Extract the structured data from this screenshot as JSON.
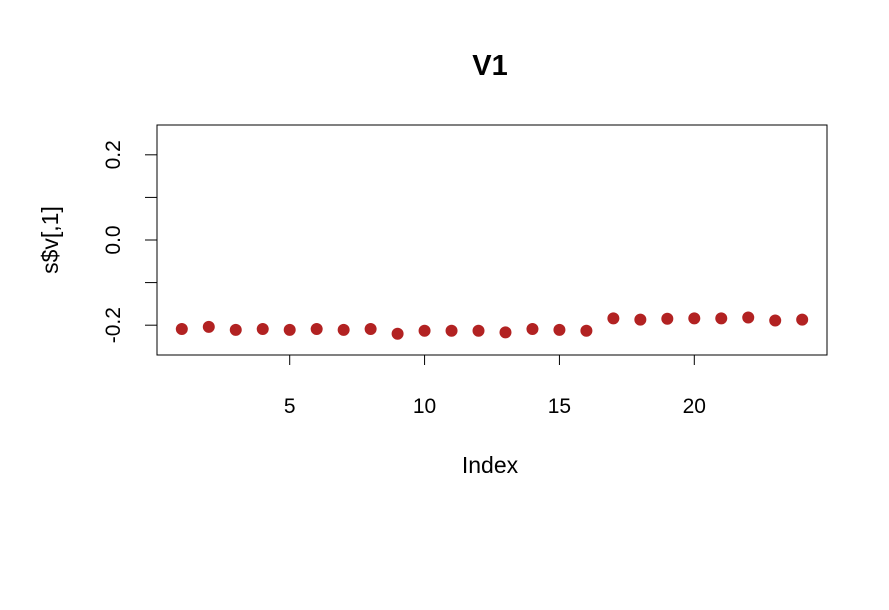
{
  "chart_data": {
    "type": "scatter",
    "title": "V1",
    "xlabel": "Index",
    "ylabel": "s$v[,1]",
    "xlim": [
      0.08,
      24.92
    ],
    "ylim": [
      -0.27,
      0.27
    ],
    "x_ticks": [
      5,
      10,
      15,
      20
    ],
    "x_tick_labels": [
      "5",
      "10",
      "15",
      "20"
    ],
    "y_ticks": [
      -0.2,
      -0.1,
      0.0,
      0.1,
      0.2
    ],
    "y_tick_labels": [
      "-0.2",
      "",
      "0.0",
      "",
      "0.2"
    ],
    "grid": false,
    "legend": "none",
    "point_color": "#B22222",
    "series": [
      {
        "x": [
          1,
          2,
          3,
          4,
          5,
          6,
          7,
          8,
          9,
          10,
          11,
          12,
          13,
          14,
          15,
          16,
          17,
          18,
          19,
          20,
          21,
          22,
          23,
          24
        ],
        "values": [
          -0.209,
          -0.204,
          -0.211,
          -0.209,
          -0.211,
          -0.209,
          -0.211,
          -0.209,
          -0.22,
          -0.213,
          -0.213,
          -0.213,
          -0.217,
          -0.209,
          -0.211,
          -0.213,
          -0.184,
          -0.187,
          -0.185,
          -0.184,
          -0.184,
          -0.182,
          -0.189,
          -0.187
        ]
      }
    ]
  }
}
